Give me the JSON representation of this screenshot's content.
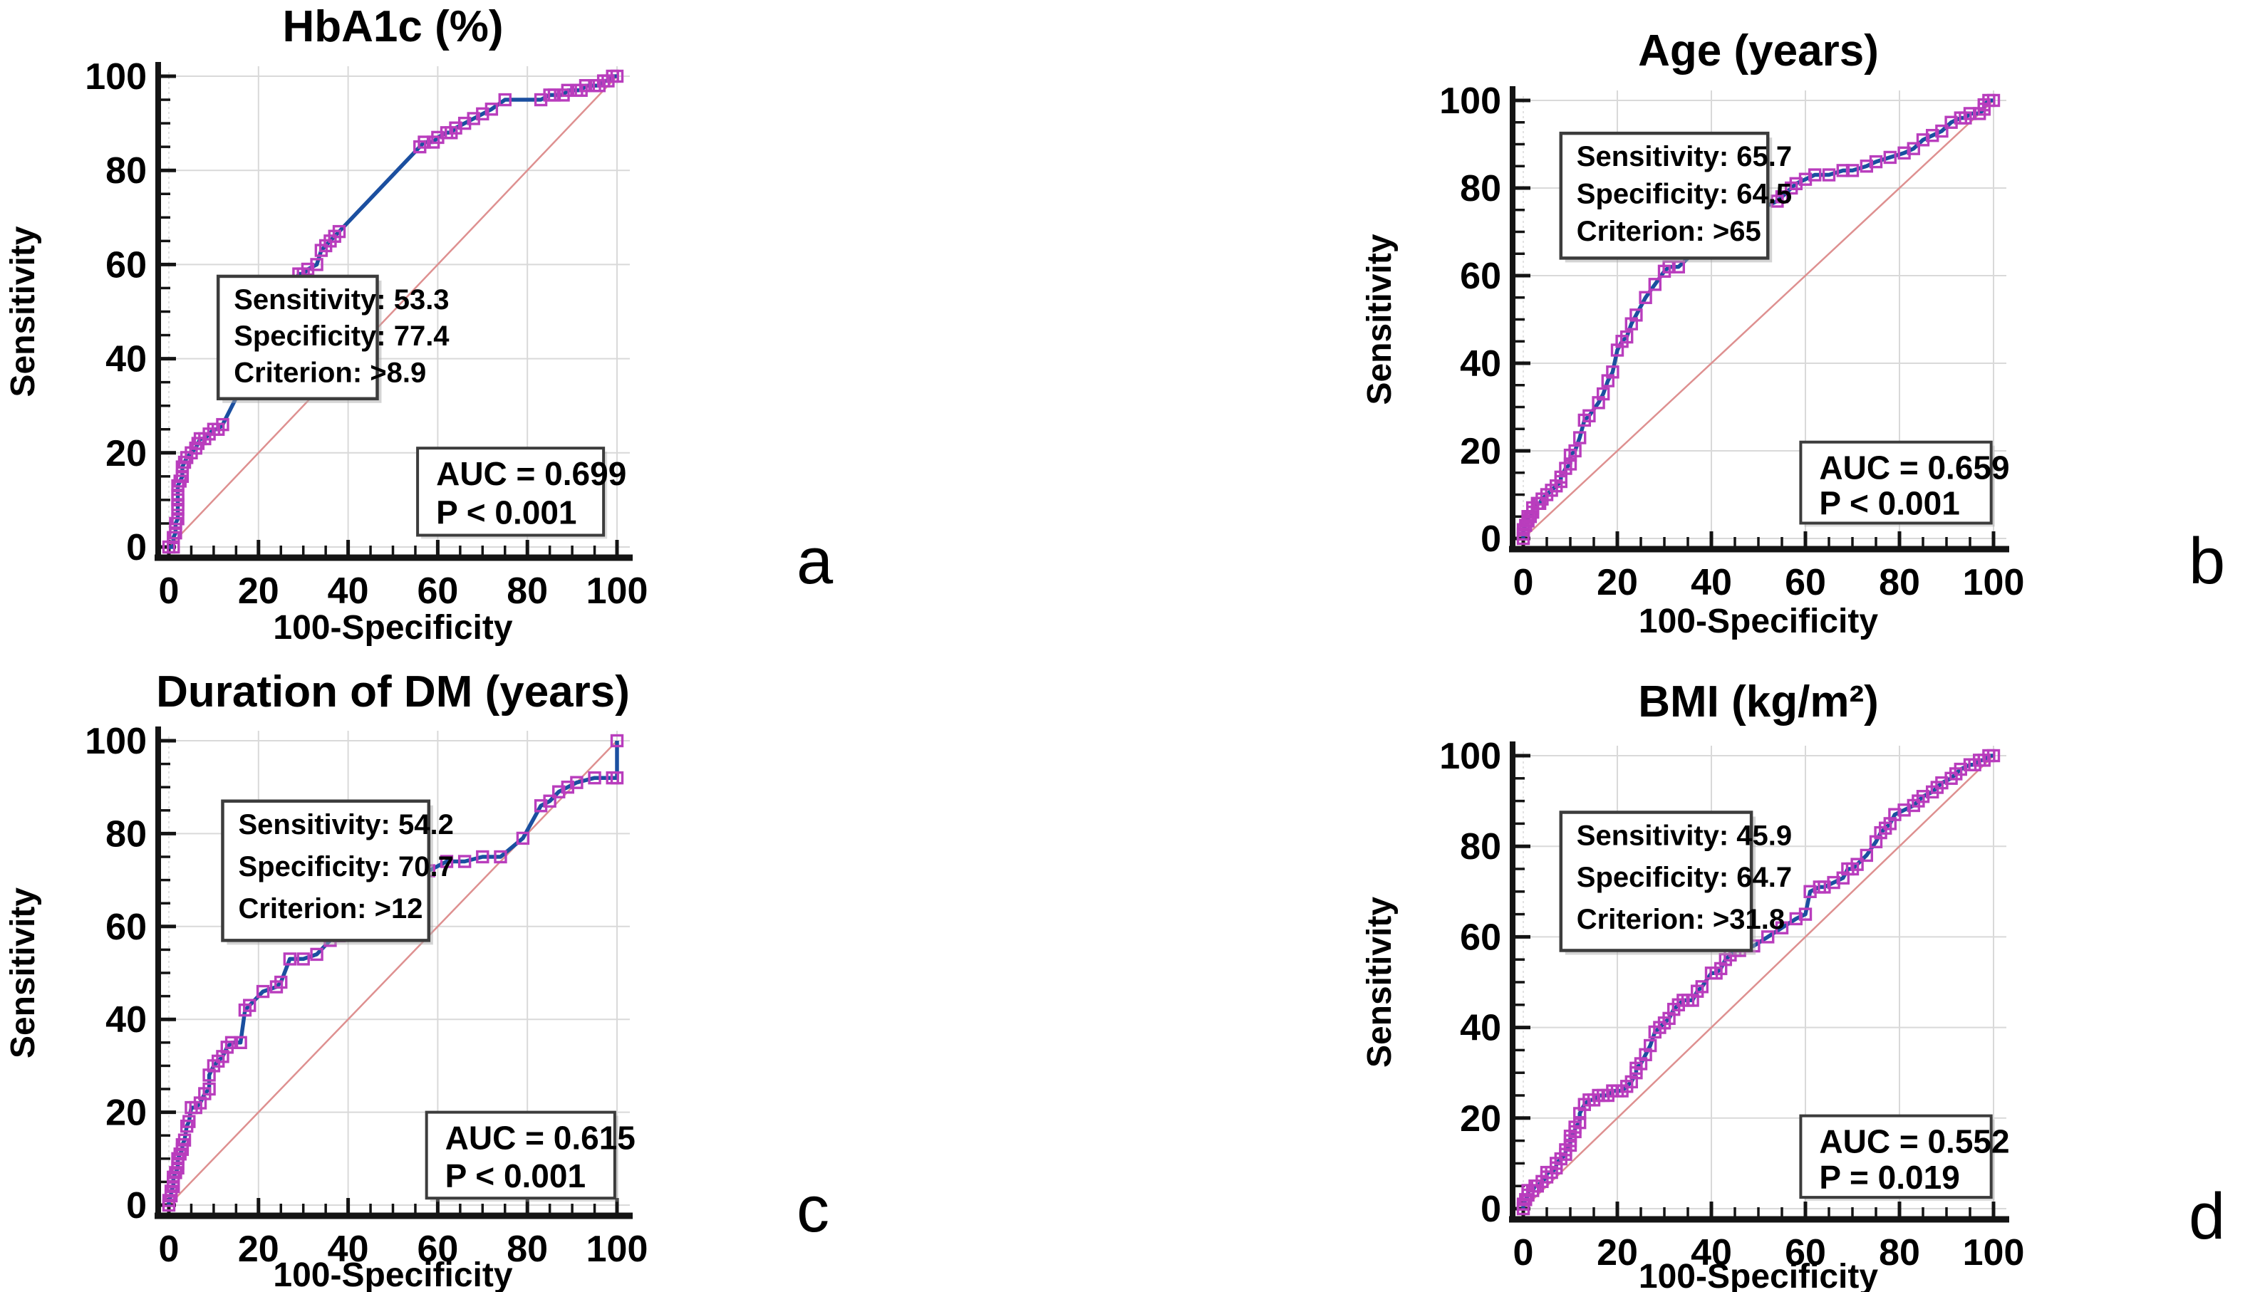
{
  "figure": {
    "description": "ROC curve analysis, four panels",
    "xlabel": "100-Specificity",
    "ylabel": "Sensitivity"
  },
  "colors": {
    "roc_line": "#1b4fa0",
    "marker": "#b93dbd",
    "marker_dense": "#9a2fae",
    "diagonal": "#de9090",
    "grid": "#d9d9d9",
    "axis": "#141414",
    "box_border": "#3c3c3c",
    "box_fill": "#ffffff",
    "box_shadow": "#aaaaaa",
    "text": "#000000"
  },
  "chart_data": [
    {
      "type": "line",
      "panel_label": "a",
      "title": "HbA1c (%)",
      "xlabel": "100-Specificity",
      "ylabel": "Sensitivity",
      "xlim": [
        0,
        100
      ],
      "ylim": [
        0,
        100
      ],
      "xticks": [
        0,
        20,
        40,
        60,
        80,
        100
      ],
      "yticks": [
        0,
        20,
        40,
        60,
        80,
        100
      ],
      "minor_tick_step": 5,
      "grid": true,
      "reference_diagonal": true,
      "auc": 0.699,
      "p_value": "P < 0.001",
      "optimal_point": {
        "sensitivity": 53.3,
        "specificity": 77.4,
        "criterion": ">8.9"
      },
      "criterion_box": {
        "lines": [
          "Sensitivity: 53.3",
          "Specificity: 77.4",
          "Criterion: >8.9"
        ],
        "rect": {
          "x1": 11,
          "y_top": 57.5,
          "x2": 46.5,
          "y_bottom": 31.5
        }
      },
      "auc_box": {
        "lines": [
          "AUC = 0.699",
          "P < 0.001"
        ],
        "rect": {
          "x1": 55.5,
          "y_top": 21,
          "x2": 97,
          "y_bottom": 2.5
        }
      },
      "roc_curve": [
        [
          0,
          0
        ],
        [
          1,
          0
        ],
        [
          1,
          2
        ],
        [
          1.5,
          3
        ],
        [
          1.5,
          5
        ],
        [
          2,
          6
        ],
        [
          2,
          8
        ],
        [
          2,
          9
        ],
        [
          2,
          10
        ],
        [
          2,
          11
        ],
        [
          2,
          13
        ],
        [
          2.5,
          14
        ],
        [
          3,
          15
        ],
        [
          3,
          17
        ],
        [
          3.5,
          18
        ],
        [
          4,
          19
        ],
        [
          5,
          20
        ],
        [
          6,
          21
        ],
        [
          6.5,
          22
        ],
        [
          7,
          23
        ],
        [
          8,
          23
        ],
        [
          9,
          24
        ],
        [
          10,
          25
        ],
        [
          11,
          25
        ],
        [
          12,
          26
        ],
        [
          29,
          58
        ],
        [
          30,
          58
        ],
        [
          31,
          59
        ],
        [
          33,
          60
        ],
        [
          34,
          63
        ],
        [
          35,
          64
        ],
        [
          36,
          65
        ],
        [
          37,
          66
        ],
        [
          38,
          67
        ],
        [
          56,
          85
        ],
        [
          57,
          86
        ],
        [
          59,
          86
        ],
        [
          60,
          87
        ],
        [
          62,
          88
        ],
        [
          63,
          88
        ],
        [
          64,
          89
        ],
        [
          66,
          90
        ],
        [
          68,
          91
        ],
        [
          70,
          92
        ],
        [
          72,
          93
        ],
        [
          75,
          95
        ],
        [
          83,
          95
        ],
        [
          85,
          96
        ],
        [
          86,
          96
        ],
        [
          88,
          96
        ],
        [
          89,
          97
        ],
        [
          91,
          97
        ],
        [
          92,
          97
        ],
        [
          93,
          98
        ],
        [
          95,
          98
        ],
        [
          96,
          98
        ],
        [
          97,
          99
        ],
        [
          98,
          99
        ],
        [
          99,
          100
        ],
        [
          100,
          100
        ]
      ]
    },
    {
      "type": "line",
      "panel_label": "b",
      "title": "Age (years)",
      "xlabel": "100-Specificity",
      "ylabel": "Sensitivity",
      "xlim": [
        0,
        100
      ],
      "ylim": [
        0,
        100
      ],
      "xticks": [
        0,
        20,
        40,
        60,
        80,
        100
      ],
      "yticks": [
        0,
        20,
        40,
        60,
        80,
        100
      ],
      "minor_tick_step": 5,
      "grid": true,
      "reference_diagonal": true,
      "auc": 0.659,
      "p_value": "P < 0.001",
      "optimal_point": {
        "sensitivity": 65.7,
        "specificity": 64.5,
        "criterion": ">65"
      },
      "criterion_box": {
        "lines": [
          "Sensitivity: 65.7",
          "Specificity: 64.5",
          "Criterion: >65"
        ],
        "rect": {
          "x1": 8,
          "y_top": 92.5,
          "x2": 52,
          "y_bottom": 64
        }
      },
      "auc_box": {
        "lines": [
          "AUC = 0.659",
          "P < 0.001"
        ],
        "rect": {
          "x1": 59,
          "y_top": 22,
          "x2": 99.5,
          "y_bottom": 3.5
        }
      },
      "roc_curve": [
        [
          0,
          0
        ],
        [
          0,
          1
        ],
        [
          0,
          2
        ],
        [
          0.5,
          3
        ],
        [
          1,
          4
        ],
        [
          1,
          5
        ],
        [
          1.5,
          5
        ],
        [
          2,
          6
        ],
        [
          2,
          7
        ],
        [
          3,
          8
        ],
        [
          3.5,
          8
        ],
        [
          4,
          9
        ],
        [
          5,
          10
        ],
        [
          6,
          11
        ],
        [
          7,
          12
        ],
        [
          8,
          13
        ],
        [
          8,
          14
        ],
        [
          9,
          16
        ],
        [
          10,
          17
        ],
        [
          10,
          19
        ],
        [
          11,
          20
        ],
        [
          12,
          23
        ],
        [
          13,
          27
        ],
        [
          14,
          28
        ],
        [
          16,
          31
        ],
        [
          17,
          33
        ],
        [
          18,
          36
        ],
        [
          19,
          38
        ],
        [
          20,
          43
        ],
        [
          21,
          45
        ],
        [
          22,
          46
        ],
        [
          23,
          49
        ],
        [
          24,
          51
        ],
        [
          26,
          55
        ],
        [
          28,
          58
        ],
        [
          30,
          61
        ],
        [
          31,
          62
        ],
        [
          33,
          62
        ],
        [
          37,
          66
        ],
        [
          41,
          69
        ],
        [
          46,
          72
        ],
        [
          50,
          75
        ],
        [
          54,
          77
        ],
        [
          55,
          78
        ],
        [
          57,
          80
        ],
        [
          58,
          81
        ],
        [
          60,
          82
        ],
        [
          62,
          83
        ],
        [
          65,
          83
        ],
        [
          68,
          84
        ],
        [
          70,
          84
        ],
        [
          73,
          85
        ],
        [
          75,
          86
        ],
        [
          78,
          87
        ],
        [
          81,
          88
        ],
        [
          83,
          89
        ],
        [
          85,
          91
        ],
        [
          87,
          92
        ],
        [
          89,
          93
        ],
        [
          91,
          95
        ],
        [
          93,
          96
        ],
        [
          94,
          96
        ],
        [
          95,
          97
        ],
        [
          97,
          97
        ],
        [
          98,
          98
        ],
        [
          98,
          99
        ],
        [
          99,
          100
        ],
        [
          100,
          100
        ]
      ]
    },
    {
      "type": "line",
      "panel_label": "c",
      "title": "Duration of DM (years)",
      "xlabel": "100-Specificity",
      "ylabel": "Sensitivity",
      "xlim": [
        0,
        100
      ],
      "ylim": [
        0,
        100
      ],
      "xticks": [
        0,
        20,
        40,
        60,
        80,
        100
      ],
      "yticks": [
        0,
        20,
        40,
        60,
        80,
        100
      ],
      "minor_tick_step": 5,
      "grid": true,
      "reference_diagonal": true,
      "auc": 0.615,
      "p_value": "P < 0.001",
      "optimal_point": {
        "sensitivity": 54.2,
        "specificity": 70.7,
        "criterion": ">12"
      },
      "criterion_box": {
        "lines": [
          "Sensitivity: 54.2",
          "Specificity: 70.7",
          "Criterion: >12"
        ],
        "rect": {
          "x1": 12,
          "y_top": 87,
          "x2": 58,
          "y_bottom": 57
        }
      },
      "auc_box": {
        "lines": [
          "AUC = 0.615",
          "P < 0.001"
        ],
        "rect": {
          "x1": 57.5,
          "y_top": 20,
          "x2": 99.5,
          "y_bottom": 1.5
        }
      },
      "roc_curve": [
        [
          0,
          0
        ],
        [
          0,
          1
        ],
        [
          0.5,
          2
        ],
        [
          0.5,
          3
        ],
        [
          1,
          4
        ],
        [
          1,
          5
        ],
        [
          1,
          6
        ],
        [
          1.5,
          7
        ],
        [
          2,
          8
        ],
        [
          2,
          9
        ],
        [
          2,
          10
        ],
        [
          2.5,
          11
        ],
        [
          3,
          12
        ],
        [
          3,
          13
        ],
        [
          3.5,
          14
        ],
        [
          4,
          17
        ],
        [
          4.5,
          18
        ],
        [
          5,
          21
        ],
        [
          6,
          21
        ],
        [
          7,
          22
        ],
        [
          8,
          24
        ],
        [
          9,
          25
        ],
        [
          9,
          28
        ],
        [
          10,
          30
        ],
        [
          11,
          31
        ],
        [
          12,
          32
        ],
        [
          13,
          34
        ],
        [
          14,
          35
        ],
        [
          16,
          35
        ],
        [
          17,
          42
        ],
        [
          18,
          43
        ],
        [
          21,
          46
        ],
        [
          24,
          47
        ],
        [
          25,
          48
        ],
        [
          27,
          53
        ],
        [
          30,
          53
        ],
        [
          33,
          54
        ],
        [
          36,
          57
        ],
        [
          38,
          58
        ],
        [
          42,
          61
        ],
        [
          46,
          64
        ],
        [
          50,
          67
        ],
        [
          54,
          70
        ],
        [
          58,
          72
        ],
        [
          62,
          74
        ],
        [
          66,
          74
        ],
        [
          70,
          75
        ],
        [
          74,
          75
        ],
        [
          79,
          79
        ],
        [
          83,
          86
        ],
        [
          85,
          87
        ],
        [
          87,
          89
        ],
        [
          89,
          90
        ],
        [
          91,
          91
        ],
        [
          95,
          92
        ],
        [
          99,
          92
        ],
        [
          100,
          92
        ],
        [
          100,
          100
        ]
      ]
    },
    {
      "type": "line",
      "panel_label": "d",
      "title": "BMI (kg/m²)",
      "xlabel": "100-Specificity",
      "ylabel": "Sensitivity",
      "xlim": [
        0,
        100
      ],
      "ylim": [
        0,
        100
      ],
      "xticks": [
        0,
        20,
        40,
        60,
        80,
        100
      ],
      "yticks": [
        0,
        20,
        40,
        60,
        80,
        100
      ],
      "minor_tick_step": 5,
      "grid": true,
      "reference_diagonal": true,
      "auc": 0.552,
      "p_value": "P = 0.019",
      "optimal_point": {
        "sensitivity": 45.9,
        "specificity": 64.7,
        "criterion": ">31.8"
      },
      "criterion_box": {
        "lines": [
          "Sensitivity: 45.9",
          "Specificity: 64.7",
          "Criterion: >31.8"
        ],
        "rect": {
          "x1": 8,
          "y_top": 87.5,
          "x2": 48.5,
          "y_bottom": 57
        }
      },
      "auc_box": {
        "lines": [
          "AUC = 0.552",
          "P = 0.019"
        ],
        "rect": {
          "x1": 59,
          "y_top": 20.5,
          "x2": 99.5,
          "y_bottom": 2.5
        }
      },
      "roc_curve": [
        [
          0,
          0
        ],
        [
          0,
          1
        ],
        [
          0.5,
          2
        ],
        [
          1,
          3
        ],
        [
          1,
          4
        ],
        [
          2,
          4
        ],
        [
          2.5,
          5
        ],
        [
          3,
          5
        ],
        [
          4,
          6
        ],
        [
          5,
          7
        ],
        [
          5,
          8
        ],
        [
          6,
          8
        ],
        [
          7,
          9
        ],
        [
          7,
          10
        ],
        [
          8,
          11
        ],
        [
          9,
          12
        ],
        [
          9,
          13
        ],
        [
          10,
          14
        ],
        [
          10,
          15
        ],
        [
          10,
          16
        ],
        [
          11,
          17
        ],
        [
          11,
          18
        ],
        [
          12,
          19
        ],
        [
          12,
          21
        ],
        [
          13,
          23
        ],
        [
          14,
          24
        ],
        [
          15,
          24
        ],
        [
          16,
          25
        ],
        [
          17,
          25
        ],
        [
          18,
          25
        ],
        [
          19,
          26
        ],
        [
          20,
          26
        ],
        [
          21,
          26
        ],
        [
          22,
          27
        ],
        [
          23,
          28
        ],
        [
          24,
          30
        ],
        [
          24,
          31
        ],
        [
          25,
          32
        ],
        [
          26,
          34
        ],
        [
          27,
          36
        ],
        [
          28,
          39
        ],
        [
          29,
          40
        ],
        [
          30,
          41
        ],
        [
          31,
          42
        ],
        [
          32,
          44
        ],
        [
          33,
          45
        ],
        [
          34,
          46
        ],
        [
          35,
          46
        ],
        [
          36,
          46
        ],
        [
          37,
          48
        ],
        [
          38,
          49
        ],
        [
          40,
          52
        ],
        [
          41,
          52
        ],
        [
          42,
          53
        ],
        [
          43,
          55
        ],
        [
          44,
          56
        ],
        [
          45,
          57
        ],
        [
          46,
          57
        ],
        [
          47,
          58
        ],
        [
          49,
          58
        ],
        [
          52,
          60
        ],
        [
          55,
          62
        ],
        [
          58,
          64
        ],
        [
          60,
          65
        ],
        [
          61,
          70
        ],
        [
          63,
          71
        ],
        [
          64,
          71
        ],
        [
          66,
          72
        ],
        [
          68,
          73
        ],
        [
          69,
          75
        ],
        [
          70,
          75
        ],
        [
          71,
          76
        ],
        [
          73,
          78
        ],
        [
          75,
          81
        ],
        [
          76,
          83
        ],
        [
          77,
          84
        ],
        [
          78,
          85
        ],
        [
          79,
          87
        ],
        [
          81,
          88
        ],
        [
          83,
          89
        ],
        [
          84,
          90
        ],
        [
          85,
          91
        ],
        [
          87,
          92
        ],
        [
          88,
          93
        ],
        [
          89,
          94
        ],
        [
          91,
          95
        ],
        [
          92,
          96
        ],
        [
          93,
          97
        ],
        [
          95,
          98
        ],
        [
          96,
          98
        ],
        [
          97,
          99
        ],
        [
          98,
          99
        ],
        [
          99,
          100
        ],
        [
          100,
          100
        ]
      ]
    }
  ]
}
